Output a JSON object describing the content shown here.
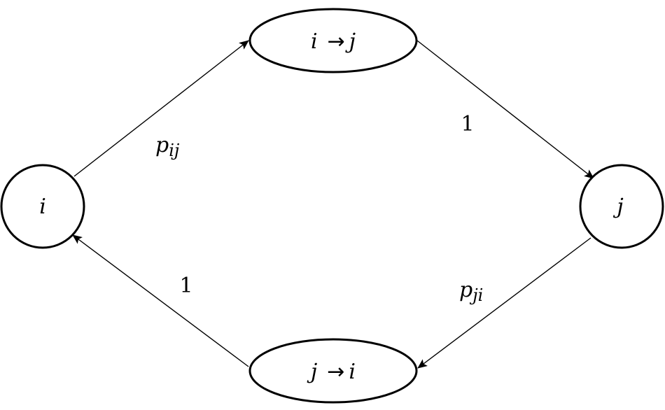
{
  "nodes": {
    "left": {
      "label": "i"
    },
    "right": {
      "label": "j"
    },
    "top": {
      "from": "i",
      "arrow": "→",
      "to": "j"
    },
    "bottom": {
      "from": "j",
      "arrow": "→",
      "to": "i"
    }
  },
  "edges": {
    "left_to_top": {
      "base": "p",
      "sub": "ij"
    },
    "top_to_right": {
      "label": "1"
    },
    "right_to_bottom": {
      "base": "p",
      "sub": "ji"
    },
    "bottom_to_left": {
      "label": "1"
    }
  },
  "colors": {
    "stroke": "#000000",
    "background": "#ffffff"
  }
}
